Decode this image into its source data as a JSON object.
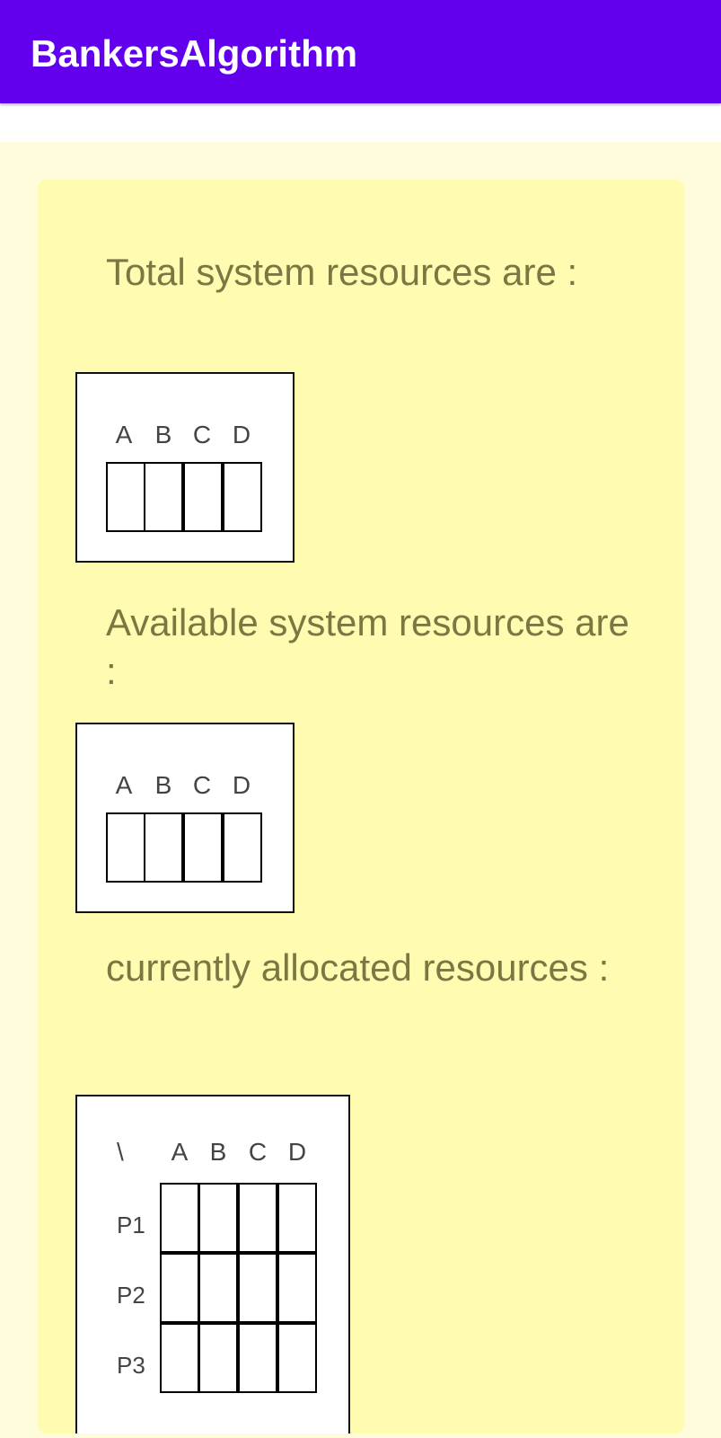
{
  "app": {
    "title": "BankersAlgorithm",
    "accent_color": "#6200ee"
  },
  "total": {
    "title": "Total system resources are :",
    "headers": [
      "A",
      "B",
      "C",
      "D"
    ]
  },
  "available": {
    "title": "Available system resources are :",
    "headers": [
      "A",
      "B",
      "C",
      "D"
    ]
  },
  "allocated": {
    "title": "currently allocated resources :",
    "corner": "\\",
    "headers": [
      "A",
      "B",
      "C",
      "D"
    ],
    "processes": [
      "P1",
      "P2",
      "P3"
    ]
  }
}
